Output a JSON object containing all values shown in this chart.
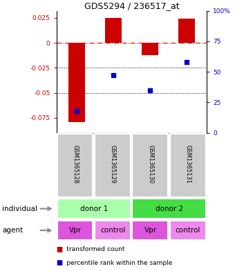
{
  "title": "GDS5294 / 236517_at",
  "samples": [
    "GSM1365128",
    "GSM1365129",
    "GSM1365130",
    "GSM1365131"
  ],
  "bar_values": [
    -0.079,
    0.025,
    -0.012,
    0.024
  ],
  "scatter_pct": [
    18,
    47,
    35,
    58
  ],
  "bar_color": "#cc0000",
  "scatter_color": "#0000cc",
  "ylim_left": [
    -0.09,
    0.032
  ],
  "ylim_right": [
    0,
    100
  ],
  "left_ticks": [
    0.025,
    0.0,
    -0.025,
    -0.05,
    -0.075
  ],
  "left_tick_labels": [
    "0.025",
    "0",
    "-0.025",
    "-0.05",
    "-0.075"
  ],
  "right_ticks": [
    100,
    75,
    50,
    25,
    0
  ],
  "right_tick_labels": [
    "100%",
    "75",
    "50",
    "25",
    "0"
  ],
  "hline_color": "#cc0000",
  "dotted_lines": [
    -0.025,
    -0.05
  ],
  "donor1_color": "#aaffaa",
  "donor2_color": "#44dd44",
  "agent_vpr_color": "#dd55dd",
  "agent_ctrl_color": "#ee88ee",
  "gsm_bg_color": "#cccccc",
  "legend_bar_label": "transformed count",
  "legend_scatter_label": "percentile rank within the sample",
  "individual_label": "individual",
  "agent_label": "agent",
  "donor1_label": "donor 1",
  "donor2_label": "donor 2",
  "agent_labels": [
    "Vpr",
    "control",
    "Vpr",
    "control"
  ],
  "agent_colors": [
    "#dd55dd",
    "#ee88ee",
    "#dd55dd",
    "#ee88ee"
  ]
}
